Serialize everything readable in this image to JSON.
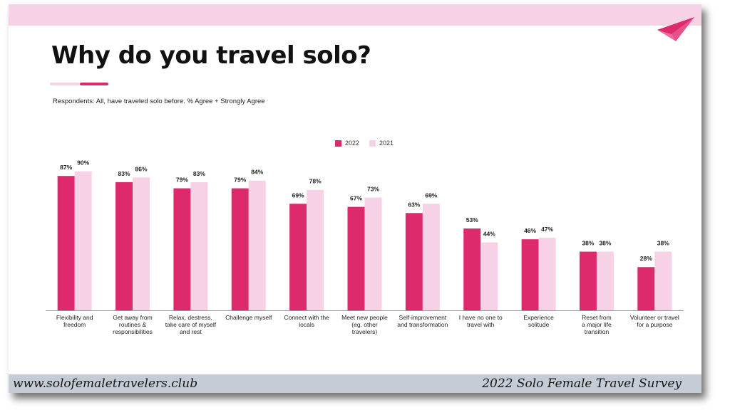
{
  "page": {
    "title": "Why do you travel solo?",
    "subtitle": "Respondents: All, have traveled solo before. % Agree + Strongly Agree",
    "footer_left": "www.solofemaletravelers.club",
    "footer_right": "2022 Solo Female Travel Survey",
    "icon": "paper-plane-icon"
  },
  "colors": {
    "series_2022": "#dd2a6d",
    "series_2021": "#f7d2e6",
    "header_bar": "#f7d2e6",
    "footer_bar": "#c5ccd6"
  },
  "chart_data": {
    "type": "bar",
    "title": "Why do you travel solo?",
    "subtitle": "Respondents: All, have traveled solo before. % Agree + Strongly Agree",
    "categories": [
      [
        "Flexibility and",
        "freedom"
      ],
      [
        "Get away from",
        "routines &",
        "responsibilities"
      ],
      [
        "Relax, destress,",
        "take care of myself",
        "and rest"
      ],
      [
        "Challenge myself"
      ],
      [
        "Connect with the",
        "locals"
      ],
      [
        "Meet new people",
        "(eg. other",
        "travelers)"
      ],
      [
        "Self-improvement",
        "and transformation"
      ],
      [
        "I have no one to",
        "travel with"
      ],
      [
        "Experience",
        "solitude"
      ],
      [
        "Reset from",
        "a major life",
        "transition"
      ],
      [
        "Volunteer or travel",
        "for a purpose"
      ]
    ],
    "series": [
      {
        "name": "2022",
        "values": [
          87,
          83,
          79,
          79,
          69,
          67,
          63,
          53,
          46,
          38,
          28
        ]
      },
      {
        "name": "2021",
        "values": [
          90,
          86,
          83,
          84,
          78,
          73,
          69,
          44,
          47,
          38,
          38
        ]
      }
    ],
    "value_suffix": "%",
    "ylim": [
      0,
      100
    ],
    "legend_position": "top-center",
    "grid": false
  }
}
